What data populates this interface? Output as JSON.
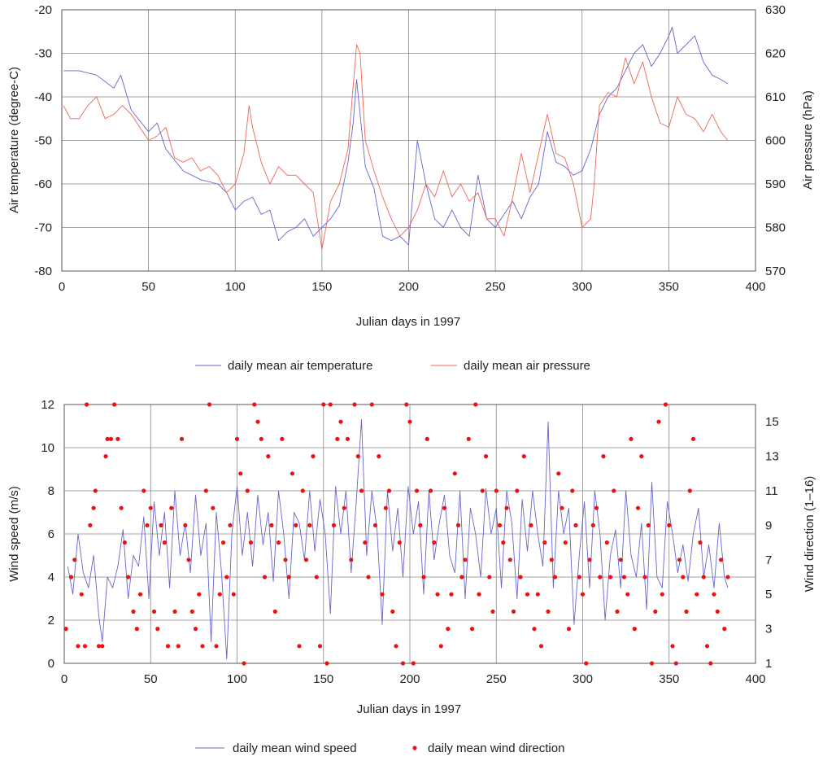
{
  "chart_data": [
    {
      "type": "line",
      "xlabel": "Julian days in 1997",
      "ylabel": "Air temperature (degree-C)",
      "y2label": "Air pressure (hPa)",
      "xlim": [
        0,
        400
      ],
      "ylim": [
        -80,
        -20
      ],
      "y2lim": [
        570,
        630
      ],
      "x_ticks": [
        "0",
        "50",
        "100",
        "150",
        "200",
        "250",
        "300",
        "350",
        "400"
      ],
      "y_ticks": [
        "-80",
        "-70",
        "-60",
        "-50",
        "-40",
        "-30",
        "-20"
      ],
      "y2_ticks": [
        "570",
        "580",
        "590",
        "600",
        "610",
        "620",
        "630"
      ],
      "grid": true,
      "legend_position": "bottom",
      "series": [
        {
          "name": "daily mean air temperature",
          "axis": "left",
          "color": "#6666cc",
          "x": [
            1,
            10,
            20,
            30,
            34,
            40,
            50,
            55,
            60,
            70,
            80,
            90,
            95,
            100,
            105,
            110,
            115,
            120,
            125,
            130,
            135,
            140,
            145,
            150,
            155,
            160,
            165,
            168,
            170,
            175,
            180,
            185,
            190,
            195,
            200,
            205,
            210,
            215,
            220,
            225,
            230,
            235,
            240,
            245,
            250,
            255,
            260,
            265,
            270,
            275,
            280,
            285,
            290,
            295,
            300,
            305,
            310,
            315,
            320,
            325,
            330,
            335,
            340,
            345,
            350,
            352,
            355,
            360,
            365,
            370,
            375,
            380,
            384
          ],
          "values": [
            -34,
            -34,
            -35,
            -38,
            -35,
            -43,
            -48,
            -46,
            -52,
            -57,
            -59,
            -60,
            -62,
            -66,
            -64,
            -63,
            -67,
            -66,
            -73,
            -71,
            -70,
            -68,
            -72,
            -70,
            -68,
            -65,
            -55,
            -46,
            -36,
            -56,
            -61,
            -72,
            -73,
            -72,
            -74,
            -50,
            -60,
            -68,
            -70,
            -66,
            -70,
            -72,
            -58,
            -68,
            -70,
            -67,
            -64,
            -68,
            -63,
            -60,
            -48,
            -55,
            -56,
            -58,
            -57,
            -52,
            -44,
            -40,
            -38,
            -34,
            -30,
            -28,
            -33,
            -30,
            -26,
            -24,
            -30,
            -28,
            -26,
            -32,
            -35,
            -36,
            -37
          ]
        },
        {
          "name": "daily mean air pressure",
          "axis": "right",
          "color": "#ee6655",
          "x": [
            1,
            5,
            10,
            15,
            20,
            25,
            30,
            35,
            40,
            50,
            55,
            60,
            65,
            70,
            75,
            80,
            85,
            90,
            95,
            100,
            105,
            108,
            110,
            115,
            120,
            125,
            130,
            135,
            140,
            145,
            150,
            155,
            160,
            165,
            170,
            172,
            175,
            180,
            185,
            190,
            195,
            200,
            205,
            210,
            215,
            220,
            225,
            230,
            235,
            240,
            245,
            250,
            255,
            260,
            265,
            270,
            275,
            280,
            285,
            290,
            295,
            300,
            305,
            307,
            310,
            315,
            320,
            325,
            330,
            335,
            340,
            345,
            350,
            355,
            360,
            365,
            370,
            375,
            380,
            384
          ],
          "values": [
            608,
            605,
            605,
            608,
            610,
            605,
            606,
            608,
            606,
            600,
            601,
            603,
            596,
            595,
            596,
            593,
            594,
            592,
            588,
            590,
            597,
            608,
            603,
            595,
            590,
            594,
            592,
            592,
            590,
            588,
            575,
            586,
            590,
            598,
            622,
            620,
            600,
            593,
            587,
            582,
            578,
            580,
            584,
            590,
            587,
            593,
            587,
            590,
            586,
            588,
            582,
            582,
            578,
            587,
            597,
            588,
            597,
            606,
            597,
            596,
            590,
            580,
            582,
            590,
            608,
            611,
            610,
            619,
            613,
            618,
            610,
            604,
            603,
            610,
            606,
            605,
            602,
            606,
            602,
            600
          ]
        }
      ]
    },
    {
      "type": "line",
      "xlabel": "Julian days in 1997",
      "ylabel": "Wind speed (m/s)",
      "y2label": "Wind direction (1–16)",
      "xlim": [
        0,
        400
      ],
      "ylim": [
        0,
        12
      ],
      "y2lim": [
        1,
        16
      ],
      "x_ticks": [
        "0",
        "50",
        "100",
        "150",
        "200",
        "250",
        "300",
        "350",
        "400"
      ],
      "y_ticks": [
        "0",
        "2",
        "4",
        "6",
        "8",
        "10",
        "12"
      ],
      "y2_ticks": [
        "1",
        "3",
        "5",
        "7",
        "9",
        "11",
        "13",
        "15"
      ],
      "grid": true,
      "legend_position": "bottom",
      "series": [
        {
          "name": "daily mean wind speed",
          "axis": "left",
          "color": "#6666cc",
          "x": [
            2,
            5,
            8,
            11,
            14,
            17,
            20,
            22,
            25,
            28,
            31,
            34,
            37,
            40,
            43,
            46,
            49,
            52,
            55,
            58,
            61,
            64,
            67,
            70,
            73,
            76,
            79,
            82,
            85,
            88,
            91,
            94,
            97,
            100,
            103,
            106,
            109,
            112,
            115,
            118,
            121,
            124,
            127,
            130,
            133,
            136,
            139,
            142,
            145,
            148,
            151,
            154,
            157,
            160,
            163,
            166,
            169,
            172,
            175,
            178,
            181,
            184,
            187,
            190,
            193,
            196,
            199,
            202,
            205,
            208,
            211,
            214,
            217,
            220,
            223,
            226,
            229,
            232,
            235,
            238,
            241,
            244,
            247,
            250,
            253,
            256,
            259,
            262,
            265,
            268,
            271,
            274,
            277,
            280,
            283,
            286,
            289,
            292,
            295,
            298,
            301,
            304,
            307,
            310,
            313,
            316,
            319,
            322,
            325,
            328,
            331,
            334,
            337,
            340,
            343,
            346,
            349,
            352,
            355,
            358,
            361,
            364,
            367,
            370,
            373,
            376,
            379,
            382,
            384
          ],
          "values": [
            4.5,
            3.2,
            6,
            4.2,
            3.5,
            5,
            2.2,
            1,
            4,
            3.5,
            4.5,
            6.2,
            3,
            5,
            4.5,
            6.8,
            3,
            7.5,
            5,
            7,
            3.5,
            8,
            5,
            6.5,
            4.2,
            7.8,
            5,
            6.5,
            1,
            7,
            4.2,
            0.2,
            6,
            8.2,
            5,
            7,
            4.5,
            7.8,
            5.5,
            7,
            3.8,
            8,
            6,
            3,
            7,
            6.5,
            4.8,
            8,
            5.2,
            7.6,
            6,
            2.3,
            8.2,
            6,
            8,
            4.2,
            7.5,
            11.3,
            5,
            8,
            6.2,
            1.8,
            8,
            5.2,
            7.2,
            4,
            8.2,
            6,
            7.5,
            3.2,
            8,
            4.8,
            6.5,
            7.8,
            5,
            4.2,
            8,
            3,
            7.2,
            6,
            4,
            8.1,
            6,
            7.2,
            3.5,
            8,
            6.5,
            3,
            7.6,
            5.2,
            8,
            6,
            4.5,
            11.2,
            3.5,
            8,
            6,
            7.2,
            1.8,
            5,
            7.5,
            3.5,
            8,
            6,
            2,
            5,
            6.2,
            3.5,
            8,
            5,
            4,
            6.5,
            2.5,
            8.4,
            4,
            3.5,
            7.5,
            6,
            4.2,
            5.5,
            3.8,
            6,
            7.2,
            4,
            5.5,
            3.5,
            6.5,
            4,
            3.5
          ]
        },
        {
          "name": "daily mean wind direction",
          "axis": "right",
          "color": "#ee1111",
          "marker": "dot",
          "x": [
            1,
            4,
            6,
            8,
            10,
            12,
            13,
            15,
            17,
            18,
            20,
            22,
            24,
            25,
            27,
            29,
            31,
            33,
            35,
            37,
            40,
            42,
            44,
            46,
            48,
            50,
            52,
            54,
            56,
            58,
            60,
            62,
            64,
            66,
            68,
            70,
            72,
            74,
            76,
            78,
            80,
            82,
            84,
            86,
            88,
            90,
            92,
            94,
            96,
            98,
            100,
            102,
            104,
            106,
            108,
            110,
            112,
            114,
            116,
            118,
            120,
            122,
            124,
            126,
            128,
            130,
            132,
            134,
            136,
            138,
            140,
            142,
            144,
            146,
            148,
            150,
            152,
            154,
            156,
            158,
            160,
            162,
            164,
            166,
            168,
            170,
            172,
            174,
            176,
            178,
            180,
            182,
            184,
            186,
            188,
            190,
            192,
            194,
            196,
            198,
            200,
            202,
            204,
            206,
            208,
            210,
            212,
            214,
            216,
            218,
            220,
            222,
            224,
            226,
            228,
            230,
            232,
            234,
            236,
            238,
            240,
            242,
            244,
            246,
            248,
            250,
            252,
            254,
            256,
            258,
            260,
            262,
            264,
            266,
            268,
            270,
            272,
            274,
            276,
            278,
            280,
            282,
            284,
            286,
            288,
            290,
            292,
            294,
            296,
            298,
            300,
            302,
            304,
            306,
            308,
            310,
            312,
            314,
            316,
            318,
            320,
            322,
            324,
            326,
            328,
            330,
            332,
            334,
            336,
            338,
            340,
            342,
            344,
            346,
            348,
            350,
            352,
            354,
            356,
            358,
            360,
            362,
            364,
            366,
            368,
            370,
            372,
            374,
            376,
            378,
            380,
            382,
            384
          ],
          "values": [
            3,
            6,
            7,
            2,
            5,
            2,
            16,
            9,
            10,
            11,
            2,
            2,
            13,
            14,
            14,
            16,
            14,
            10,
            8,
            6,
            4,
            3,
            5,
            11,
            9,
            10,
            4,
            3,
            9,
            8,
            2,
            10,
            4,
            2,
            14,
            9,
            7,
            4,
            3,
            5,
            2,
            11,
            16,
            10,
            2,
            5,
            8,
            6,
            9,
            5,
            14,
            12,
            1,
            11,
            8,
            16,
            15,
            14,
            6,
            13,
            9,
            4,
            8,
            14,
            7,
            6,
            12,
            9,
            2,
            11,
            7,
            9,
            13,
            6,
            2,
            16,
            1,
            16,
            9,
            14,
            15,
            10,
            14,
            7,
            16,
            13,
            11,
            8,
            6,
            16,
            9,
            13,
            5,
            10,
            11,
            4,
            2,
            8,
            1,
            16,
            15,
            1,
            11,
            9,
            6,
            14,
            11,
            8,
            5,
            2,
            10,
            3,
            5,
            12,
            9,
            6,
            7,
            14,
            3,
            16,
            5,
            11,
            13,
            6,
            4,
            11,
            9,
            8,
            10,
            7,
            4,
            11,
            6,
            13,
            5,
            9,
            3,
            5,
            2,
            8,
            4,
            7,
            6,
            12,
            10,
            8,
            3,
            11,
            9,
            6,
            5,
            1,
            7,
            9,
            10,
            6,
            13,
            8,
            6,
            11,
            4,
            7,
            6,
            5,
            14,
            3,
            10,
            13,
            6,
            9,
            1,
            4,
            15,
            5,
            16,
            9,
            2,
            1,
            7,
            6,
            4,
            11,
            14,
            5,
            8,
            6,
            2,
            1,
            5,
            4,
            7,
            3,
            6
          ]
        }
      ]
    }
  ]
}
